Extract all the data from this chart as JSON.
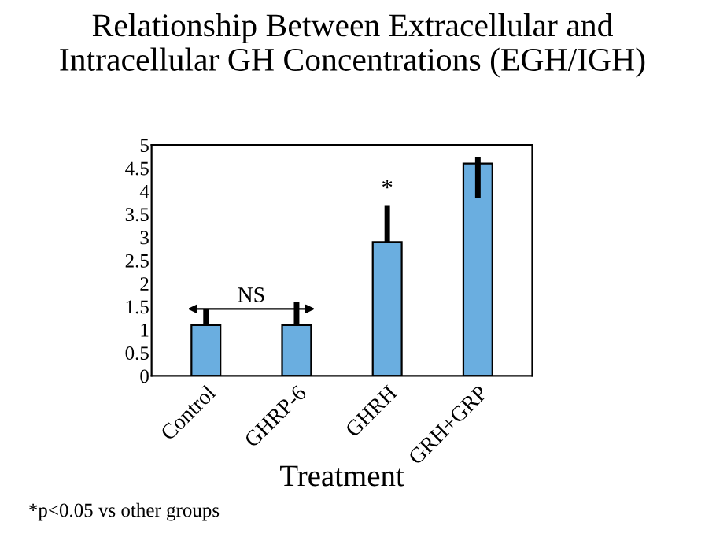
{
  "chart_data": {
    "type": "bar",
    "title": "Relationship Between Extracellular and\nIntracellular GH Concentrations (EGH/IGH)",
    "xlabel": "Treatment",
    "categories": [
      "Control",
      "GHRP-6",
      "GHRH",
      "GRH+GRP"
    ],
    "values": [
      1.1,
      1.1,
      2.9,
      4.6
    ],
    "color": "#6aaee0",
    "errors": [
      0.35,
      0.5,
      0.8,
      [
        3.85,
        4.73
      ]
    ],
    "ylim": [
      0,
      5
    ],
    "yticks": [
      0,
      {
        "value": 0.5,
        "label": "0.5"
      },
      1,
      {
        "value": 1.5,
        "label": "1.5"
      },
      2,
      {
        "value": 2.5,
        "label": "2.5"
      },
      3,
      {
        "value": 3.5,
        "label": "3.5"
      },
      4,
      {
        "value": 4.5,
        "label": "4.5"
      },
      5
    ],
    "grid": false,
    "legend": false,
    "annotations": [
      "NS",
      {
        "text": "*",
        "x": "GHRH",
        "y": 3.7
      },
      "*p<0.05 vs other groups"
    ]
  }
}
